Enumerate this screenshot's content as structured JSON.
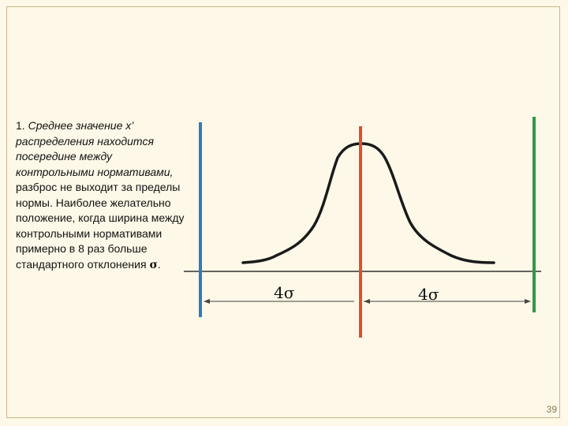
{
  "text": {
    "number": "1.",
    "emphasis": "Среднее значение x’ распределения находится посередине между контрольными нормативами,",
    "body": " разброс не выходит за пределы нормы. Наиболее желательно положение, когда ширина между контрольными нормативами примерно в 8 раз больше стандартного отклонения ",
    "sigma": "σ",
    "period": "."
  },
  "diagram": {
    "left_label": "4σ",
    "right_label": "4σ",
    "colors": {
      "left_limit": "#2e7bbf",
      "center_line": "#e0502a",
      "right_limit": "#2e9a46",
      "curve": "#1a1a1a",
      "axis": "#333333"
    }
  },
  "page_number": "39"
}
